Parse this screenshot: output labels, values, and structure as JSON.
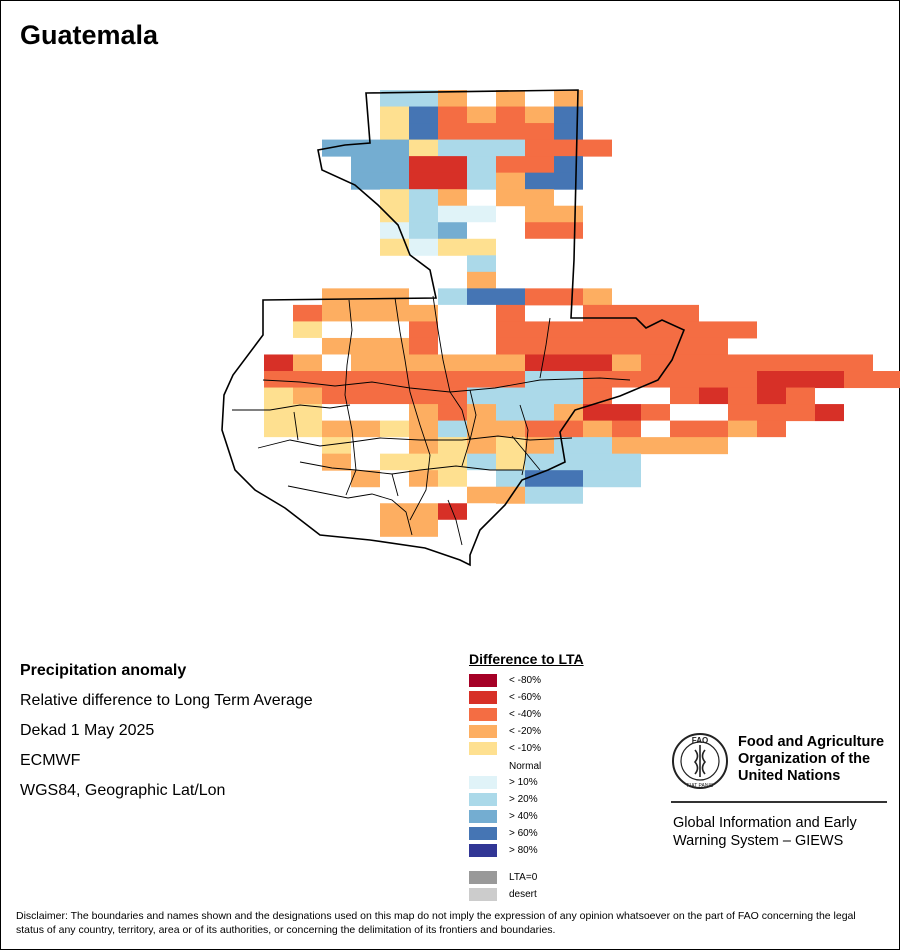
{
  "title": "Guatemala",
  "info": {
    "heading": "Precipitation anomaly",
    "line1": "Relative difference to Long Term Average",
    "line2": "Dekad 1 May 2025",
    "line3": "ECMWF",
    "line4": "WGS84, Geographic Lat/Lon"
  },
  "legend": {
    "title": "Difference to LTA",
    "items": [
      {
        "key": "d80",
        "label": "< -80%",
        "color": "#a50026"
      },
      {
        "key": "d60",
        "label": "< -60%",
        "color": "#d73027"
      },
      {
        "key": "d40",
        "label": "< -40%",
        "color": "#f46d43"
      },
      {
        "key": "d20",
        "label": "< -20%",
        "color": "#fdae61"
      },
      {
        "key": "d10",
        "label": "< -10%",
        "color": "#fee090"
      },
      {
        "key": "n",
        "label": "Normal",
        "color": "#ffffff"
      },
      {
        "key": "w10",
        "label": "> 10%",
        "color": "#e0f3f8"
      },
      {
        "key": "w20",
        "label": "> 20%",
        "color": "#abd9e9"
      },
      {
        "key": "w40",
        "label": "> 40%",
        "color": "#74add1"
      },
      {
        "key": "w60",
        "label": "> 60%",
        "color": "#4575b4"
      },
      {
        "key": "w80",
        "label": "> 80%",
        "color": "#313695"
      },
      {
        "key": "lta0",
        "label": "LTA=0",
        "color": "#999999"
      },
      {
        "key": "desert",
        "label": "desert",
        "color": "#cccccc"
      }
    ]
  },
  "org": {
    "emblem_text": "FAO",
    "emblem_motto": "FIAT PANIS",
    "line1": "Food and Agriculture",
    "line2": "Organization of the",
    "line3": "United Nations",
    "giews1": "Global Information and Early",
    "giews2": "Warning System – GIEWS"
  },
  "disclaimer": "Disclaimer: The boundaries and names shown and the designations used on this map do not imply the expression of any opinion whatsoever on the part of FAO concerning the legal status of any country, territory, area or of its authorities, or concerning the delimitation of its frontiers and boundaries.",
  "grid": {
    "rows": [
      "      bbdndnd ",
      "      ecrdrdcn",
      "      ecrrrrcn",
      "    fffebbbrrr",
      "     ffkkbrrc",
      "     ffkkbdcc",
      "      ebd dd ",
      "      ebaa dd",
      "      abfnnrr ",
      "      eaeennn ",
      "         bnn  ",
      "         dn  ",
      "    ddd bccrrd",
      "   rddddnnr  rrrr",
      "   ennnrnnrrrrrrrrr",
      "   ndddrnnrrrrrrrr",
      "  kdnddddddkkkdrrrrrrrr",
      "  rrrrrrrrrbbrrrrrrkkkrrrr",
      "  edrrrrrbbbbrnnrkrkr",
      "  eennndrdbbdkkrnnrrrk",
      "  eeddedbddrrdrnrrdr",
      "  nnenndededbbddddnn",
      "   ndneeebebbbb",
      "     dndenbccbb",
      "       nnddbb",
      "      ddkn",
      "      ddn"
    ]
  }
}
